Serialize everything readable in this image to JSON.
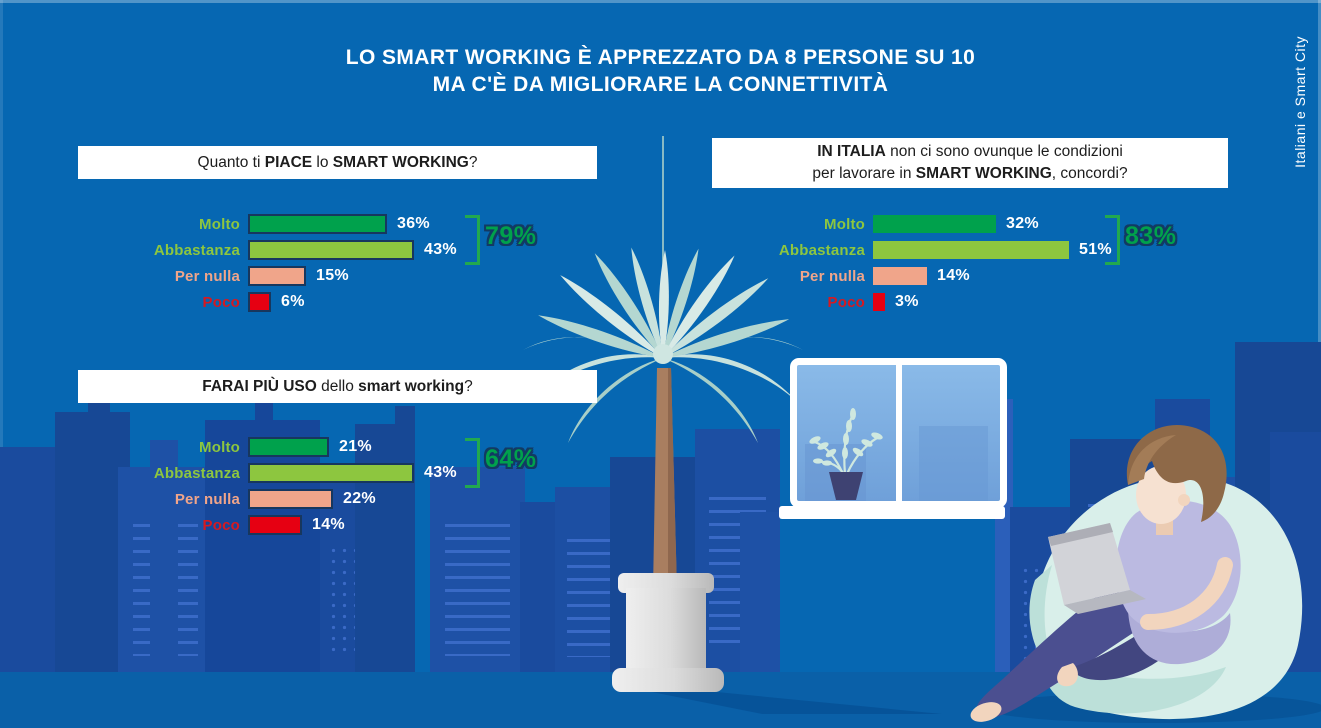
{
  "title": {
    "line1": "LO SMART WORKING È APPREZZATO DA 8 PERSONE SU 10",
    "line2": "MA C'È DA MIGLIORARE LA CONNETTIVITÀ"
  },
  "side_label": "Italiani e Smart City",
  "palette": {
    "background": "#0667B2",
    "skyline": "#1A4B9E",
    "skyline_detail": "#3E6ECC",
    "floor": "#0A60A8",
    "box_background": "#FFFFFF",
    "box_text": "#1D1D1D",
    "green_dark": "#00A14C",
    "green_light": "#8DC63F",
    "salmon": "#F0A58A",
    "red": "#E60012",
    "red_label": "#D71920",
    "value_text": "#FFFFFF",
    "big_pct_fill": "#00A14C",
    "big_pct_outline": "#123A63",
    "bracket": "#22A94F",
    "bar_border": "#17375E"
  },
  "chart_data": [
    {
      "type": "bar",
      "question_parts": [
        {
          "text": "Quanto ti ",
          "bold": false
        },
        {
          "text": "PIACE",
          "bold": true
        },
        {
          "text": " lo ",
          "bold": false
        },
        {
          "text": "SMART WORKING",
          "bold": true
        },
        {
          "text": "?",
          "bold": false
        }
      ],
      "categories": [
        "Molto",
        "Abbastanza",
        "Per nulla",
        "Poco"
      ],
      "values": [
        36,
        43,
        15,
        6
      ],
      "unit": "%",
      "xlim": [
        0,
        55
      ],
      "bar_colors": [
        "#00A14C",
        "#8DC63F",
        "#F0A58A",
        "#E60012"
      ],
      "label_colors": [
        "#8DC63F",
        "#8DC63F",
        "#F0A58A",
        "#D71920"
      ],
      "bars_outlined": true,
      "bracket": {
        "label": "79%",
        "span_categories": [
          "Molto",
          "Abbastanza"
        ]
      }
    },
    {
      "type": "bar",
      "question_parts": [
        {
          "text": "IN ITALIA",
          "bold": true
        },
        {
          "text": " non ci sono ovunque le condizioni",
          "bold": false
        },
        {
          "break": true
        },
        {
          "text": "per lavorare in ",
          "bold": false
        },
        {
          "text": "SMART WORKING",
          "bold": true
        },
        {
          "text": ", concordi?",
          "bold": false
        }
      ],
      "categories": [
        "Molto",
        "Abbastanza",
        "Per nulla",
        "Poco"
      ],
      "values": [
        32,
        51,
        14,
        3
      ],
      "unit": "%",
      "xlim": [
        0,
        55
      ],
      "bar_colors": [
        "#00A14C",
        "#8DC63F",
        "#F0A58A",
        "#E60012"
      ],
      "label_colors": [
        "#8DC63F",
        "#8DC63F",
        "#F0A58A",
        "#D71920"
      ],
      "bars_outlined": false,
      "bracket": {
        "label": "83%",
        "span_categories": [
          "Molto",
          "Abbastanza"
        ]
      }
    },
    {
      "type": "bar",
      "question_parts": [
        {
          "text": "FARAI PIÙ USO",
          "bold": true
        },
        {
          "text": " dello ",
          "bold": false
        },
        {
          "text": "smart working",
          "bold": true
        },
        {
          "text": "?",
          "bold": false
        }
      ],
      "categories": [
        "Molto",
        "Abbastanza",
        "Per nulla",
        "Poco"
      ],
      "values": [
        21,
        43,
        22,
        14
      ],
      "unit": "%",
      "xlim": [
        0,
        55
      ],
      "bar_colors": [
        "#00A14C",
        "#8DC63F",
        "#F0A58A",
        "#E60012"
      ],
      "label_colors": [
        "#8DC63F",
        "#8DC63F",
        "#F0A58A",
        "#D71920"
      ],
      "bars_outlined": true,
      "bracket": {
        "label": "64%",
        "span_categories": [
          "Molto",
          "Abbastanza"
        ]
      }
    }
  ]
}
